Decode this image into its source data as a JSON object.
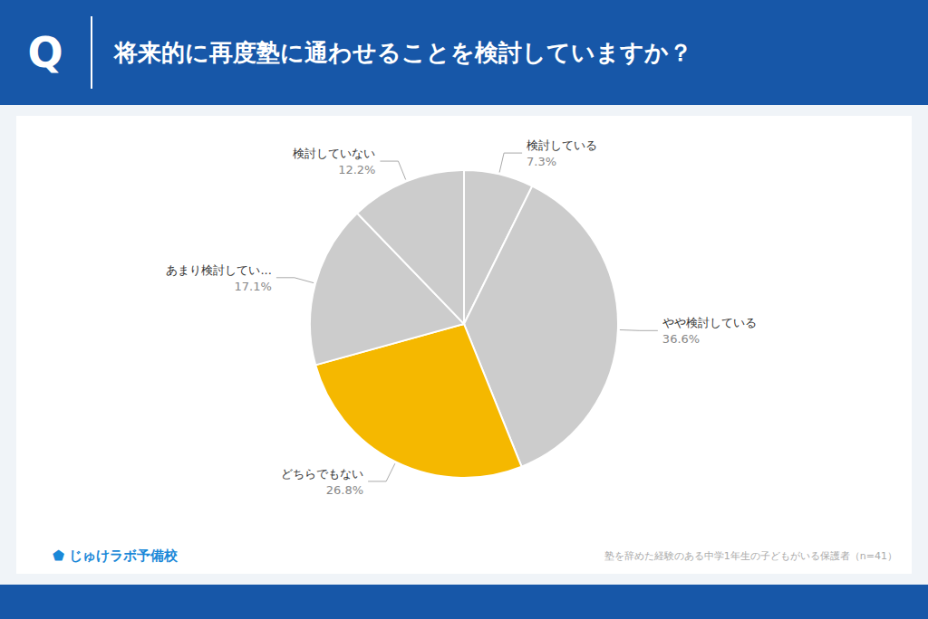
{
  "chart_data": {
    "type": "pie",
    "title": "将来的に再度塾に通わせることを検討していますか？",
    "categories": [
      "検討している",
      "やや検討している",
      "どちらでもない",
      "あまり検討してい...",
      "検討していない"
    ],
    "values": [
      7.3,
      36.6,
      26.8,
      17.1,
      12.2
    ],
    "value_labels": [
      "7.3%",
      "36.6%",
      "26.8%",
      "17.1%",
      "12.2%"
    ],
    "colors": [
      "#cccccc",
      "#cccccc",
      "#f5b800",
      "#cccccc",
      "#cccccc"
    ],
    "data_labels": true,
    "annotations": [
      "Q",
      "塾を辞めた経験のある中学1年生の子どもがいる保護者（n=41）",
      "⬟ じゅけラボ予備校"
    ]
  }
}
